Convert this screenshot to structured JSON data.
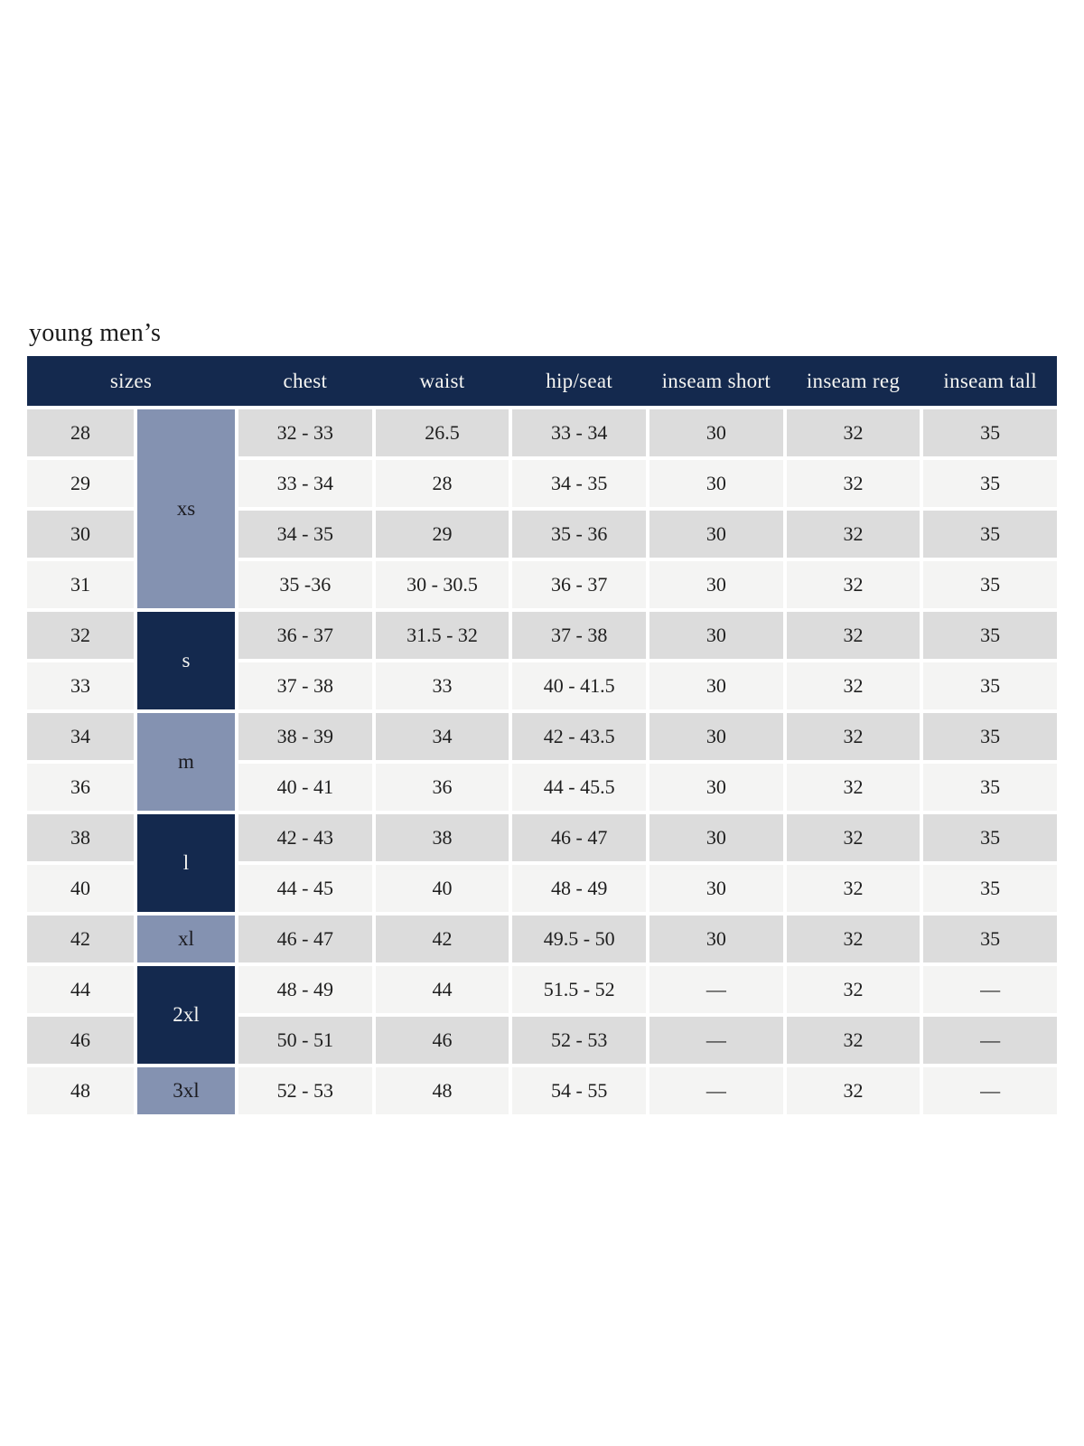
{
  "page": {
    "title": "young men’s"
  },
  "colors": {
    "navy": "#14294e",
    "steel_blue": "#8492b1",
    "row_shade_dark": "#dcdcdc",
    "row_shade_light": "#f4f4f3",
    "header_text": "#f5f5f2",
    "body_text": "#1e1e1e"
  },
  "chart_data": {
    "type": "table",
    "title": "young men’s",
    "headers": [
      "sizes",
      "chest",
      "waist",
      "hip/seat",
      "inseam short",
      "inseam reg",
      "inseam tall"
    ],
    "size_groups": [
      {
        "label": "xs",
        "row_span": 4,
        "fill": "steel"
      },
      {
        "label": "s",
        "row_span": 2,
        "fill": "navy"
      },
      {
        "label": "m",
        "row_span": 2,
        "fill": "steel"
      },
      {
        "label": "l",
        "row_span": 2,
        "fill": "navy"
      },
      {
        "label": "xl",
        "row_span": 1,
        "fill": "steel"
      },
      {
        "label": "2xl",
        "row_span": 2,
        "fill": "navy"
      },
      {
        "label": "3xl",
        "row_span": 1,
        "fill": "steel"
      }
    ],
    "rows": [
      {
        "size": "28",
        "chest": "32 - 33",
        "waist": "26.5",
        "hip_seat": "33 - 34",
        "inseam_short": "30",
        "inseam_reg": "32",
        "inseam_tall": "35"
      },
      {
        "size": "29",
        "chest": "33 - 34",
        "waist": "28",
        "hip_seat": "34 - 35",
        "inseam_short": "30",
        "inseam_reg": "32",
        "inseam_tall": "35"
      },
      {
        "size": "30",
        "chest": "34 - 35",
        "waist": "29",
        "hip_seat": "35 - 36",
        "inseam_short": "30",
        "inseam_reg": "32",
        "inseam_tall": "35"
      },
      {
        "size": "31",
        "chest": "35 -36",
        "waist": "30 - 30.5",
        "hip_seat": "36 - 37",
        "inseam_short": "30",
        "inseam_reg": "32",
        "inseam_tall": "35"
      },
      {
        "size": "32",
        "chest": "36 - 37",
        "waist": "31.5 - 32",
        "hip_seat": "37 - 38",
        "inseam_short": "30",
        "inseam_reg": "32",
        "inseam_tall": "35"
      },
      {
        "size": "33",
        "chest": "37 - 38",
        "waist": "33",
        "hip_seat": "40 - 41.5",
        "inseam_short": "30",
        "inseam_reg": "32",
        "inseam_tall": "35"
      },
      {
        "size": "34",
        "chest": "38 - 39",
        "waist": "34",
        "hip_seat": "42 - 43.5",
        "inseam_short": "30",
        "inseam_reg": "32",
        "inseam_tall": "35"
      },
      {
        "size": "36",
        "chest": "40 - 41",
        "waist": "36",
        "hip_seat": "44 - 45.5",
        "inseam_short": "30",
        "inseam_reg": "32",
        "inseam_tall": "35"
      },
      {
        "size": "38",
        "chest": "42 - 43",
        "waist": "38",
        "hip_seat": "46 - 47",
        "inseam_short": "30",
        "inseam_reg": "32",
        "inseam_tall": "35"
      },
      {
        "size": "40",
        "chest": "44 - 45",
        "waist": "40",
        "hip_seat": "48 - 49",
        "inseam_short": "30",
        "inseam_reg": "32",
        "inseam_tall": "35"
      },
      {
        "size": "42",
        "chest": "46 - 47",
        "waist": "42",
        "hip_seat": "49.5 - 50",
        "inseam_short": "30",
        "inseam_reg": "32",
        "inseam_tall": "35"
      },
      {
        "size": "44",
        "chest": "48 - 49",
        "waist": "44",
        "hip_seat": "51.5 - 52",
        "inseam_short": "—",
        "inseam_reg": "32",
        "inseam_tall": "—"
      },
      {
        "size": "46",
        "chest": "50 - 51",
        "waist": "46",
        "hip_seat": "52 - 53",
        "inseam_short": "—",
        "inseam_reg": "32",
        "inseam_tall": "—"
      },
      {
        "size": "48",
        "chest": "52 - 53",
        "waist": "48",
        "hip_seat": "54 - 55",
        "inseam_short": "—",
        "inseam_reg": "32",
        "inseam_tall": "—"
      }
    ]
  }
}
